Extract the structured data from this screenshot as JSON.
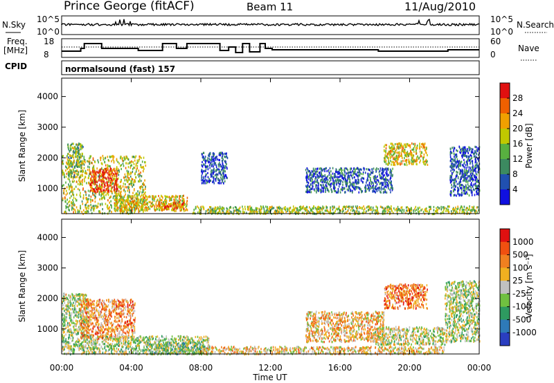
{
  "header": {
    "station": "Prince George (fitACF)",
    "beam": "Beam 11",
    "date": "11/Aug/2010"
  },
  "top_panels": {
    "nsky_label": "N.Sky",
    "nsky_ticks": [
      "10^5",
      "10^0"
    ],
    "nsearch_label": "N.Search",
    "nsearch_ticks": [
      "10^5",
      "10^0"
    ],
    "freq_label": "Freq.",
    "freq_unit": "[MHz]",
    "freq_ticks": [
      "18",
      "8"
    ],
    "nave_label": "Nave",
    "nave_ticks": [
      "60",
      "0"
    ],
    "cpid_label": "CPID",
    "cpid_value": "normalsound (fast) 157"
  },
  "chart_data": [
    {
      "type": "heatmap",
      "name": "power",
      "ylabel": "Slant Range [km]",
      "y_ticks": [
        1000,
        2000,
        3000,
        4000
      ],
      "ylim": [
        180,
        4600
      ],
      "xlim": [
        0,
        24
      ],
      "colorbar_label": "Power [dB]",
      "colorbar_ticks": [
        "4",
        "8",
        "12",
        "16",
        "20",
        "24",
        "28"
      ],
      "colorscale": [
        "#1010e0",
        "#2050b0",
        "#3c8a60",
        "#58b040",
        "#c0c800",
        "#f0a000",
        "#f06000",
        "#e01010"
      ],
      "regions": [
        {
          "t0": 0.0,
          "t1": 4.8,
          "r0": 200,
          "r1": 2100,
          "level": 0.55
        },
        {
          "t0": 1.6,
          "t1": 3.2,
          "r0": 900,
          "r1": 1700,
          "level": 0.85
        },
        {
          "t0": 0.3,
          "t1": 1.2,
          "r0": 1400,
          "r1": 2500,
          "level": 0.45
        },
        {
          "t0": 3.0,
          "t1": 7.2,
          "r0": 300,
          "r1": 800,
          "level": 0.6
        },
        {
          "t0": 5.5,
          "t1": 7.0,
          "r0": 300,
          "r1": 600,
          "level": 0.75
        },
        {
          "t0": 7.5,
          "t1": 24.0,
          "r0": 200,
          "r1": 450,
          "level": 0.5
        },
        {
          "t0": 14.0,
          "t1": 19.0,
          "r0": 900,
          "r1": 1700,
          "level": 0.2
        },
        {
          "t0": 18.5,
          "t1": 21.0,
          "r0": 1800,
          "r1": 2500,
          "level": 0.6
        },
        {
          "t0": 22.3,
          "t1": 24.0,
          "r0": 800,
          "r1": 2400,
          "level": 0.2
        },
        {
          "t0": 8.0,
          "t1": 9.5,
          "r0": 1200,
          "r1": 2200,
          "level": 0.15
        }
      ]
    },
    {
      "type": "heatmap",
      "name": "velocity",
      "ylabel": "Slant Range [km]",
      "xlabel": "Time UT",
      "y_ticks": [
        1000,
        2000,
        3000,
        4000
      ],
      "ylim": [
        180,
        4600
      ],
      "xlim": [
        0,
        24
      ],
      "x_ticks": [
        "00:00",
        "04:00",
        "08:00",
        "12:00",
        "16:00",
        "20:00",
        "00:00"
      ],
      "colorbar_label": "Velocity [m s⁻¹]",
      "colorbar_ticks": [
        "1000",
        "500",
        "100",
        "25",
        "-25",
        "-100",
        "-500",
        "-1000"
      ],
      "colorscale": [
        "#2a3ec0",
        "#2e7ab8",
        "#2e9a60",
        "#70c040",
        "#c0c0c0",
        "#f0b020",
        "#f08020",
        "#f05010",
        "#e01010"
      ],
      "regions": [
        {
          "t0": 0.0,
          "t1": 1.5,
          "r0": 200,
          "r1": 2200,
          "level": 0.45
        },
        {
          "t0": 1.0,
          "t1": 4.2,
          "r0": 700,
          "r1": 2000,
          "level": 0.7
        },
        {
          "t0": 1.5,
          "t1": 8.5,
          "r0": 200,
          "r1": 800,
          "level": 0.45
        },
        {
          "t0": 5.0,
          "t1": 8.0,
          "r0": 200,
          "r1": 600,
          "level": 0.4
        },
        {
          "t0": 8.0,
          "t1": 22.0,
          "r0": 200,
          "r1": 450,
          "level": 0.58
        },
        {
          "t0": 14.0,
          "t1": 18.5,
          "r0": 600,
          "r1": 1600,
          "level": 0.62
        },
        {
          "t0": 18.5,
          "t1": 21.0,
          "r0": 1700,
          "r1": 2500,
          "level": 0.75
        },
        {
          "t0": 18.0,
          "t1": 22.0,
          "r0": 500,
          "r1": 1100,
          "level": 0.5
        },
        {
          "t0": 22.0,
          "t1": 24.0,
          "r0": 600,
          "r1": 2600,
          "level": 0.45
        }
      ]
    }
  ]
}
